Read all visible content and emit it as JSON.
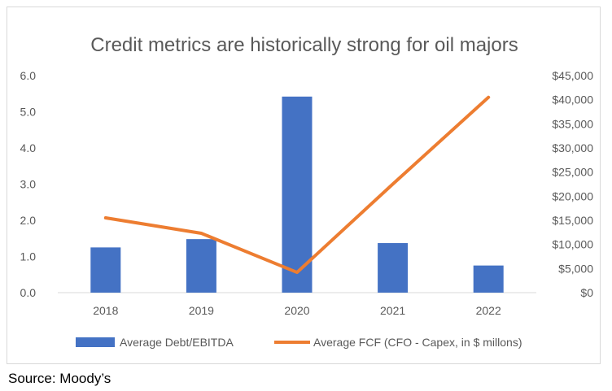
{
  "chart_data": {
    "type": "bar",
    "title": "Credit metrics are historically strong for oil majors",
    "categories": [
      "2018",
      "2019",
      "2020",
      "2021",
      "2022"
    ],
    "series": [
      {
        "name": "Average Debt/EBITDA",
        "type": "bar",
        "axis": "left",
        "values": [
          1.25,
          1.48,
          5.42,
          1.37,
          0.75
        ]
      },
      {
        "name": "Average FCF (CFO - Capex, in $ millons)",
        "type": "line",
        "axis": "right",
        "values": [
          15500,
          12300,
          4200,
          22500,
          40500
        ]
      }
    ],
    "y_left": {
      "ylim": [
        0,
        6
      ],
      "ticks": [
        "0.0",
        "1.0",
        "2.0",
        "3.0",
        "4.0",
        "5.0",
        "6.0"
      ]
    },
    "y_right": {
      "ylim": [
        0,
        45000
      ],
      "ticks": [
        "$0",
        "$5,000",
        "$10,000",
        "$15,000",
        "$20,000",
        "$25,000",
        "$30,000",
        "$35,000",
        "$40,000",
        "$45,000"
      ]
    },
    "grid": false,
    "legend": "bottom",
    "colors": {
      "bar": "#4472c4",
      "line": "#ed7d31"
    }
  },
  "source": "Source: Moody’s"
}
